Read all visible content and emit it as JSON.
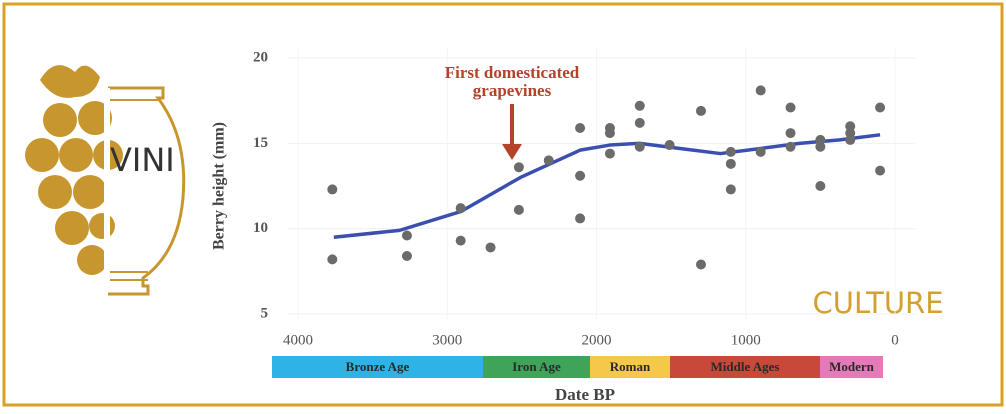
{
  "decor": {
    "logo": "VINI",
    "tag": "CULTURE"
  },
  "chart_data": {
    "type": "scatter",
    "ylabel": "Berry height (mm)",
    "xlabel": "Date BP",
    "xlim": [
      4000,
      0
    ],
    "ylim": [
      5,
      20
    ],
    "xticks": [
      4000,
      3000,
      2000,
      1000,
      0
    ],
    "yticks": [
      5,
      10,
      15,
      20
    ],
    "grid": true,
    "annotation": [
      "First domesticated",
      "grapevines"
    ],
    "annotation_color": "#b5432a",
    "points": {
      "color": "#6b6b6b",
      "x": [
        3770,
        3770,
        3270,
        3270,
        2910,
        2910,
        2710,
        2520,
        2520,
        2320,
        2110,
        2110,
        2110,
        1910,
        1910,
        1910,
        1710,
        1710,
        1710,
        1510,
        1300,
        1300,
        1100,
        1100,
        1100,
        900,
        900,
        700,
        700,
        700,
        500,
        500,
        500,
        300,
        300,
        300,
        100,
        100
      ],
      "y": [
        12.3,
        8.2,
        9.6,
        8.4,
        11.2,
        9.3,
        8.9,
        13.6,
        11.1,
        14.0,
        15.9,
        13.1,
        10.6,
        15.9,
        15.6,
        14.4,
        17.2,
        16.2,
        14.8,
        14.9,
        16.9,
        7.9,
        14.5,
        13.8,
        12.3,
        18.1,
        14.5,
        17.1,
        15.6,
        14.8,
        15.2,
        14.8,
        12.5,
        16.0,
        15.6,
        15.2,
        17.1,
        13.4
      ]
    },
    "trend": {
      "color": "#3b4fb0",
      "x": [
        3760,
        3320,
        2910,
        2510,
        2110,
        1910,
        1710,
        1440,
        1170,
        900,
        640,
        370,
        100
      ],
      "y": [
        9.5,
        9.9,
        11.0,
        13.0,
        14.6,
        14.9,
        15.0,
        14.7,
        14.4,
        14.7,
        15.0,
        15.2,
        15.5
      ]
    },
    "periods": [
      {
        "label": "Bronze Age",
        "color": "#2fb3e6"
      },
      {
        "label": "Iron Age",
        "color": "#3fa35a"
      },
      {
        "label": "Roman",
        "color": "#f5c84b"
      },
      {
        "label": "Middle Ages",
        "color": "#c8483a"
      },
      {
        "label": "Modern",
        "color": "#e57ab8"
      }
    ]
  }
}
